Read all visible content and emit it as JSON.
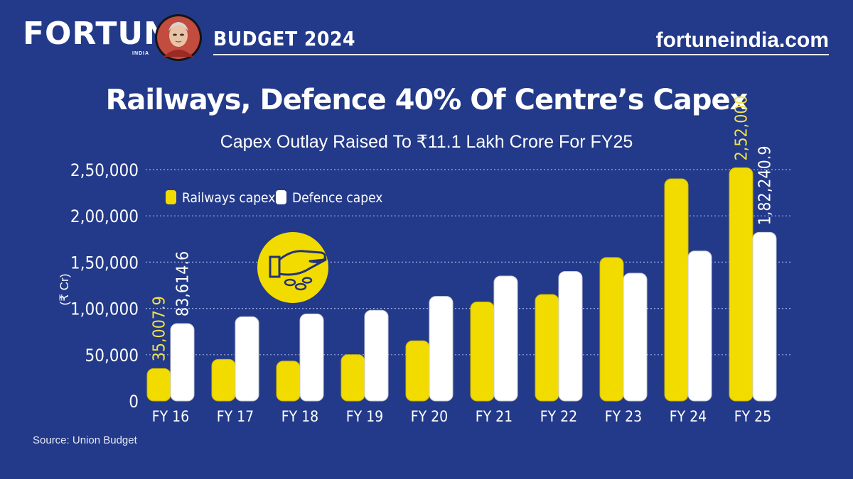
{
  "header": {
    "brand": "FORTUNE",
    "brand_sub": "INDIA",
    "section_label": "BUDGET 2024",
    "site_url": "fortuneindia.com"
  },
  "title": "Railways, Defence 40% Of Centre’s Capex",
  "subtitle": "Capex Outlay Raised To ₹11.1 Lakh Crore For FY25",
  "source": "Source: Union Budget",
  "colors": {
    "background": "#233a8a",
    "railways": "#f2dc00",
    "defence": "#ffffff",
    "highlight_label": "#f2e24a"
  },
  "chart_data": {
    "type": "bar",
    "title": "Capex Outlay Raised To ₹11.1 Lakh Crore For FY25",
    "xlabel": "",
    "ylabel": "(₹ Cr)",
    "ylim": [
      0,
      250000
    ],
    "yticks": [
      0,
      50000,
      100000,
      150000,
      200000,
      250000
    ],
    "ytick_labels": [
      "0",
      "50,000",
      "1,00,000",
      "1,50,000",
      "2,00,000",
      "2,50,000"
    ],
    "grid": true,
    "legend": "top-left",
    "categories": [
      "FY 16",
      "FY 17",
      "FY 18",
      "FY 19",
      "FY 20",
      "FY 21",
      "FY 22",
      "FY 23",
      "FY 24",
      "FY 25"
    ],
    "series": [
      {
        "name": "Railways capex",
        "values": [
          35007.9,
          45000,
          43000,
          50000,
          65000,
          107000,
          115000,
          155000,
          240000,
          252000
        ],
        "labels": [
          "35,007.9",
          "",
          "",
          "",
          "",
          "",
          "",
          "",
          "",
          "2,52,000"
        ]
      },
      {
        "name": "Defence capex",
        "values": [
          83614.6,
          91000,
          94000,
          98000,
          113000,
          135000,
          140000,
          138000,
          162000,
          182240.9
        ],
        "labels": [
          "83,614.6",
          "",
          "",
          "",
          "",
          "",
          "",
          "",
          "",
          "1,82,240.9"
        ]
      }
    ]
  }
}
